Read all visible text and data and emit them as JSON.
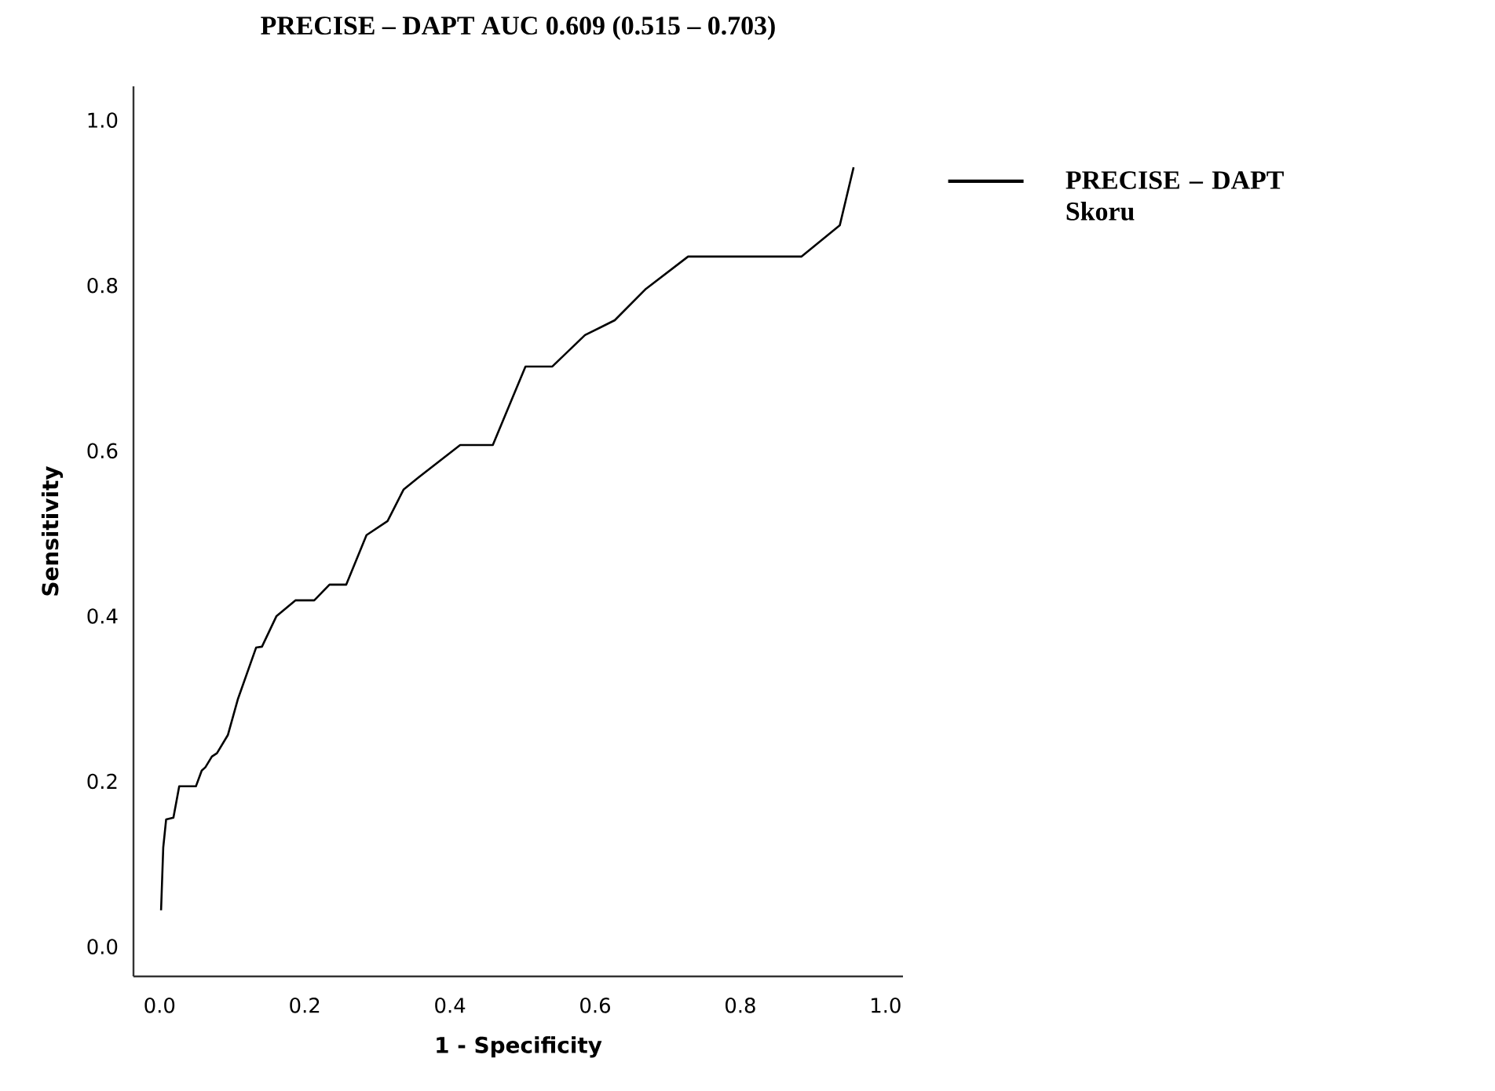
{
  "chart_data": {
    "type": "line",
    "title": "PRECISE – DAPT AUC 0.609 (0.515 – 0.703)",
    "xlabel": "1 - Specificity",
    "ylabel": "Sensitivity",
    "series": [
      {
        "name": "PRECISE – DAPT Skoru",
        "color": "#000000",
        "x": [
          0.002,
          0.005,
          0.009,
          0.019,
          0.027,
          0.05,
          0.058,
          0.063,
          0.072,
          0.079,
          0.094,
          0.108,
          0.133,
          0.141,
          0.161,
          0.187,
          0.213,
          0.234,
          0.257,
          0.285,
          0.314,
          0.336,
          0.357,
          0.414,
          0.459,
          0.504,
          0.541,
          0.586,
          0.627,
          0.67,
          0.728,
          0.884,
          0.937,
          0.956
        ],
        "values": [
          0.044,
          0.12,
          0.154,
          0.156,
          0.194,
          0.194,
          0.213,
          0.217,
          0.23,
          0.234,
          0.256,
          0.3,
          0.362,
          0.363,
          0.4,
          0.419,
          0.419,
          0.438,
          0.438,
          0.498,
          0.515,
          0.553,
          0.568,
          0.607,
          0.607,
          0.702,
          0.702,
          0.74,
          0.758,
          0.796,
          0.835,
          0.835,
          0.873,
          0.943
        ]
      }
    ],
    "xlim": [
      -0.036,
      1.024
    ],
    "ylim": [
      -0.036,
      1.041
    ],
    "xticks": [
      {
        "value": 0,
        "label": "0.0"
      },
      {
        "value": 0.2,
        "label": "0.2"
      },
      {
        "value": 0.4,
        "label": "0.4"
      },
      {
        "value": 0.6,
        "label": "0.6"
      },
      {
        "value": 0.8,
        "label": "0.8"
      },
      {
        "value": 1,
        "label": "1.0"
      }
    ],
    "yticks": [
      {
        "value": 0,
        "label": "0.0"
      },
      {
        "value": 0.2,
        "label": "0.2"
      },
      {
        "value": 0.4,
        "label": "0.4"
      },
      {
        "value": 0.6,
        "label": "0.6"
      },
      {
        "value": 0.8,
        "label": "0.8"
      },
      {
        "value": 1,
        "label": "1.0"
      }
    ],
    "legend": "top right"
  }
}
